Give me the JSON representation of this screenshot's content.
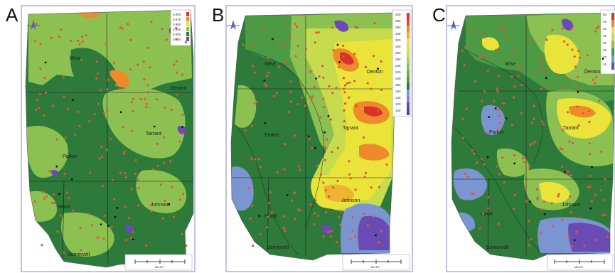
{
  "panels": [
    {
      "letter": "A",
      "counties": [
        "Wise",
        "Denton",
        "Parker",
        "Tarrant",
        "Hood",
        "Johnson",
        "Somervell"
      ],
      "legend": [
        "0.990",
        "0.975",
        "0.950",
        "0.900",
        "0.800",
        "0.700"
      ]
    },
    {
      "letter": "B",
      "counties": [
        "Wise",
        "Denton",
        "Parker",
        "Tarrant",
        "Hood",
        "Johnson",
        "Somervell"
      ],
      "legend": [
        "400",
        "380",
        "360",
        "340",
        "320",
        "300",
        "280",
        "260",
        "240",
        "220",
        "200",
        "180",
        "160",
        "140",
        "120",
        "100"
      ]
    },
    {
      "letter": "C",
      "counties": [
        "Wise",
        "Denton",
        "Parker",
        "Tarrant",
        "Hood",
        "Johnson",
        "Somervell"
      ],
      "legend": [
        "50",
        "45",
        "40",
        "35",
        "30",
        "25",
        "20",
        "15"
      ]
    }
  ],
  "north_arrow_icon": "north-arrow-icon",
  "scale_bar_label": "MILES",
  "colors": {
    "dark_green": "#2e7a3a",
    "mid_green": "#4c9a43",
    "light_green": "#8cc152",
    "yellow_green": "#c7dc4d",
    "yellow": "#eae43a",
    "orange": "#ee8a2a",
    "red": "#d9322a",
    "purple": "#6a4bb3",
    "blue": "#7b95d0",
    "frame": "#8a86c2",
    "well_dot": "#e2553c"
  }
}
